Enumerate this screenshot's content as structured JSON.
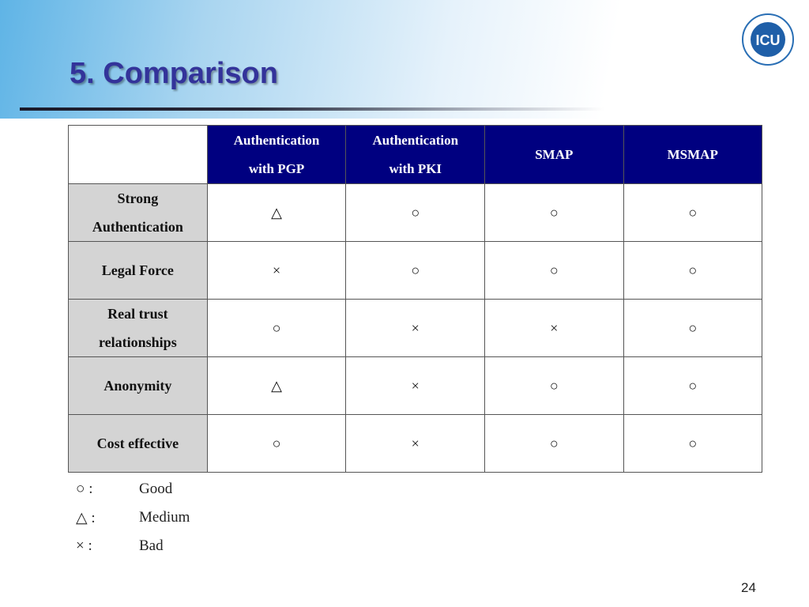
{
  "title": "5. Comparison",
  "logo": "ICU",
  "table": {
    "header": [
      "",
      "Authentication\nwith PGP",
      "Authentication\nwith PKI",
      "SMAP",
      "MSMAP"
    ],
    "rows": [
      [
        "Strong\nAuthentication",
        "△",
        "○",
        "○",
        "○"
      ],
      [
        "Legal Force",
        "×",
        "○",
        "○",
        "○"
      ],
      [
        "Real trust\nrelationships",
        "○",
        "×",
        "×",
        "○"
      ],
      [
        "Anonymity",
        "△",
        "×",
        "○",
        "○"
      ],
      [
        "Cost effective",
        "○",
        "×",
        "○",
        "○"
      ]
    ]
  },
  "legend": [
    {
      "symbol": "○ :",
      "meaning": "Good"
    },
    {
      "symbol": "△ :",
      "meaning": "Medium"
    },
    {
      "symbol": "× :",
      "meaning": "Bad"
    }
  ],
  "page_number": "24"
}
